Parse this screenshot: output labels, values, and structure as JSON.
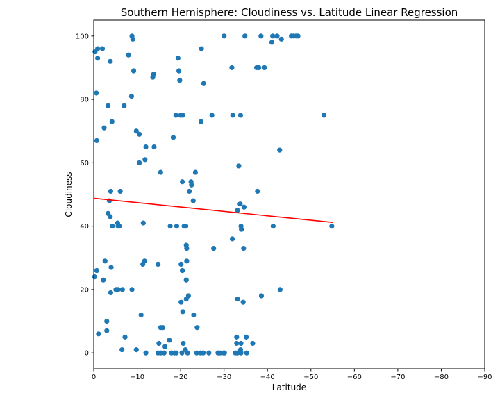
{
  "chart_data": {
    "type": "scatter",
    "title": "Southern Hemisphere: Cloudiness vs. Latitude Linear Regression",
    "xlabel": "Latitude",
    "ylabel": "Cloudiness",
    "xlim": [
      0,
      -90
    ],
    "ylim": [
      -5,
      105
    ],
    "x_ticks": [
      0,
      -10,
      -20,
      -30,
      -40,
      -50,
      -60,
      -70,
      -80,
      -90
    ],
    "x_tick_labels": [
      "0",
      "−10",
      "−20",
      "−30",
      "−40",
      "−50",
      "−60",
      "−70",
      "−80",
      "−90"
    ],
    "y_ticks": [
      0,
      20,
      40,
      60,
      80,
      100
    ],
    "y_tick_labels": [
      "0",
      "20",
      "40",
      "60",
      "80",
      "100"
    ],
    "grid": false,
    "colors": {
      "points": "#1f77b4",
      "regression": "#ff0000"
    },
    "regression_line": {
      "x": [
        0,
        -55
      ],
      "y": [
        48.8,
        41.2
      ]
    },
    "series": [
      {
        "points": [
          [
            -0.3,
            95
          ],
          [
            -0.9,
            96
          ],
          [
            -2,
            96
          ],
          [
            -0.9,
            93
          ],
          [
            -3.8,
            92
          ],
          [
            -8.8,
            100
          ],
          [
            -9,
            99
          ],
          [
            -8,
            94
          ],
          [
            -9.2,
            89
          ],
          [
            -13.8,
            88
          ],
          [
            -13.6,
            87
          ],
          [
            -19.6,
            89
          ],
          [
            -19.4,
            93
          ],
          [
            -24.8,
            96
          ],
          [
            -30,
            100
          ],
          [
            -34.8,
            100
          ],
          [
            -38.5,
            100
          ],
          [
            -41.2,
            100
          ],
          [
            -42.2,
            100
          ],
          [
            -43.2,
            99
          ],
          [
            -41,
            98
          ],
          [
            -45.5,
            100
          ],
          [
            -46,
            100
          ],
          [
            -46.6,
            100
          ],
          [
            -47,
            100
          ],
          [
            -19.8,
            86
          ],
          [
            -25.3,
            85
          ],
          [
            -31.8,
            90
          ],
          [
            -37.5,
            90
          ],
          [
            -38,
            90
          ],
          [
            -39.3,
            90
          ],
          [
            -0.6,
            82
          ],
          [
            -8.7,
            81
          ],
          [
            -3.3,
            78
          ],
          [
            -7,
            78
          ],
          [
            -18.9,
            75
          ],
          [
            -20,
            75
          ],
          [
            -20.5,
            75
          ],
          [
            -24.7,
            73
          ],
          [
            -27.2,
            75
          ],
          [
            -32,
            75
          ],
          [
            -33.8,
            75
          ],
          [
            -53,
            75
          ],
          [
            -4.2,
            73
          ],
          [
            -2.4,
            71
          ],
          [
            -9.8,
            70
          ],
          [
            -10.5,
            69
          ],
          [
            -0.7,
            67
          ],
          [
            -18.3,
            68
          ],
          [
            -12,
            65
          ],
          [
            -13.9,
            65
          ],
          [
            -42.8,
            64
          ],
          [
            -10.5,
            60
          ],
          [
            -11.8,
            61
          ],
          [
            -23.4,
            57
          ],
          [
            -15.4,
            57
          ],
          [
            -33.4,
            59
          ],
          [
            -20.4,
            54
          ],
          [
            -22.4,
            54
          ],
          [
            -22.5,
            53
          ],
          [
            -3.9,
            51
          ],
          [
            -6.1,
            51
          ],
          [
            -22,
            51
          ],
          [
            -37.7,
            51
          ],
          [
            -3.6,
            48
          ],
          [
            -22.9,
            48
          ],
          [
            -3.3,
            44
          ],
          [
            -3.8,
            43
          ],
          [
            -33.7,
            47
          ],
          [
            -34.6,
            46
          ],
          [
            -33.1,
            45
          ],
          [
            -4.3,
            40
          ],
          [
            -5.5,
            41
          ],
          [
            -5.9,
            40
          ],
          [
            -5.6,
            40
          ],
          [
            -11.4,
            41
          ],
          [
            -17.6,
            40
          ],
          [
            -19.1,
            40
          ],
          [
            -20.8,
            40
          ],
          [
            -21.2,
            40
          ],
          [
            -33.9,
            40
          ],
          [
            -34,
            39
          ],
          [
            -41.3,
            40
          ],
          [
            -54.8,
            40
          ],
          [
            -31.9,
            36
          ],
          [
            -21.3,
            34
          ],
          [
            -21.4,
            33
          ],
          [
            -27.6,
            33
          ],
          [
            -34.5,
            33
          ],
          [
            -2.6,
            29
          ],
          [
            -4,
            27
          ],
          [
            -11.3,
            28
          ],
          [
            -11.7,
            29
          ],
          [
            -14.8,
            28
          ],
          [
            -20.1,
            28
          ],
          [
            -21.4,
            29
          ],
          [
            -0.2,
            24
          ],
          [
            -0.7,
            26
          ],
          [
            -2.2,
            23
          ],
          [
            -20.4,
            26
          ],
          [
            -21.3,
            23
          ],
          [
            -3.9,
            19
          ],
          [
            -5.1,
            20
          ],
          [
            -5.6,
            20
          ],
          [
            -6.6,
            20
          ],
          [
            -8.8,
            20
          ],
          [
            -21.3,
            17
          ],
          [
            -21.8,
            18
          ],
          [
            -20.1,
            16
          ],
          [
            -33.1,
            17
          ],
          [
            -34.4,
            16
          ],
          [
            -38.6,
            18
          ],
          [
            -42.9,
            20
          ],
          [
            -20.5,
            13
          ],
          [
            -10.9,
            12
          ],
          [
            -23,
            12
          ],
          [
            -3,
            10
          ],
          [
            -3,
            7
          ],
          [
            -1.1,
            6
          ],
          [
            -7.2,
            5
          ],
          [
            -15.4,
            8
          ],
          [
            -15.9,
            8
          ],
          [
            -23.8,
            8
          ],
          [
            -17.4,
            4
          ],
          [
            -32.9,
            5
          ],
          [
            -35.1,
            5
          ],
          [
            -36.6,
            3
          ],
          [
            -15,
            3
          ],
          [
            -20.6,
            3
          ],
          [
            -32.9,
            3
          ],
          [
            -33.9,
            3
          ],
          [
            -6.5,
            1
          ],
          [
            -9.8,
            1
          ],
          [
            -16.4,
            2
          ],
          [
            -21.1,
            1
          ],
          [
            -33.8,
            1
          ],
          [
            -12,
            0
          ],
          [
            -14.8,
            0
          ],
          [
            -15.4,
            0
          ],
          [
            -16.2,
            0
          ],
          [
            -17.9,
            0
          ],
          [
            -18.6,
            0
          ],
          [
            -19,
            0
          ],
          [
            -20.3,
            0
          ],
          [
            -21.6,
            0
          ],
          [
            -23.7,
            0
          ],
          [
            -24.6,
            0
          ],
          [
            -25.2,
            0
          ],
          [
            -26.5,
            0
          ],
          [
            -28.6,
            0
          ],
          [
            -29.1,
            0
          ],
          [
            -29.9,
            0
          ],
          [
            -30.1,
            0
          ],
          [
            -32.6,
            0
          ],
          [
            -33.1,
            0
          ],
          [
            -33.9,
            0
          ],
          [
            -35.2,
            0
          ]
        ]
      }
    ]
  }
}
